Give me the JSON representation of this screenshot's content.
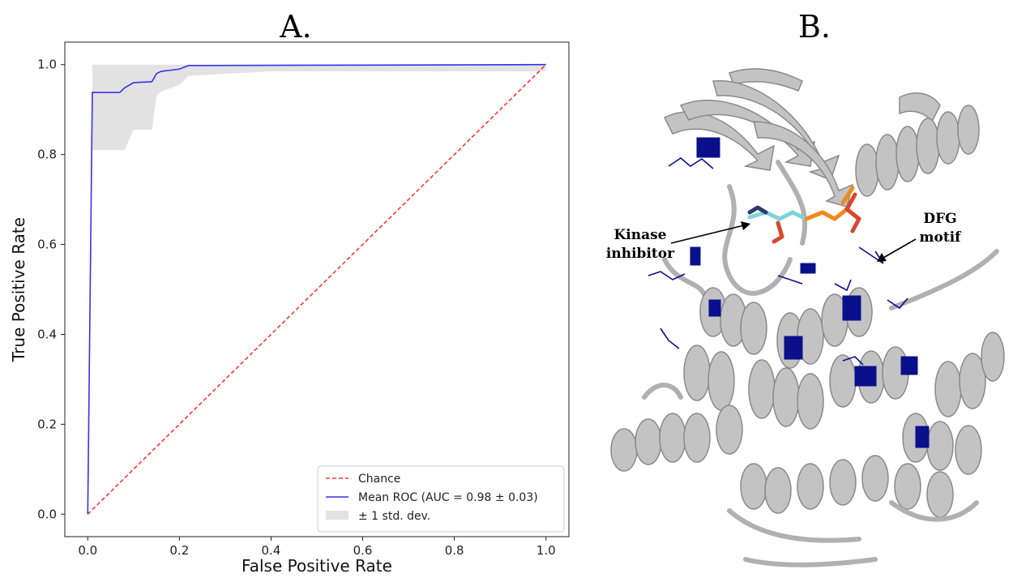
{
  "panels": {
    "a_label": "A.",
    "b_label": "B."
  },
  "chart_data": {
    "type": "line",
    "title": "",
    "xlabel": "False Positive Rate",
    "ylabel": "True Positive Rate",
    "xlim": [
      -0.05,
      1.05
    ],
    "ylim": [
      -0.05,
      1.05
    ],
    "xticks": [
      0.0,
      0.2,
      0.4,
      0.6,
      0.8,
      1.0
    ],
    "yticks": [
      0.0,
      0.2,
      0.4,
      0.6,
      0.8,
      1.0
    ],
    "xtick_labels": [
      "0.0",
      "0.2",
      "0.4",
      "0.6",
      "0.8",
      "1.0"
    ],
    "ytick_labels": [
      "0.0",
      "0.2",
      "0.4",
      "0.6",
      "0.8",
      "1.0"
    ],
    "grid": false,
    "legend_position": "bottom-right",
    "series": [
      {
        "name": "Chance",
        "style": "dashed",
        "color": "#ff3333",
        "x": [
          0.0,
          1.0
        ],
        "y": [
          0.0,
          1.0
        ]
      },
      {
        "name": "Mean ROC (AUC = 0.98 ± 0.03)",
        "style": "solid",
        "color": "#3333ee",
        "x": [
          0.0,
          0.01,
          0.07,
          0.08,
          0.1,
          0.14,
          0.15,
          0.16,
          0.2,
          0.22,
          1.0
        ],
        "y": [
          0.0,
          0.938,
          0.938,
          0.948,
          0.96,
          0.962,
          0.98,
          0.985,
          0.99,
          0.998,
          1.0
        ]
      }
    ],
    "band": {
      "name": "± 1 std. dev.",
      "color": "#e2e2e2",
      "x": [
        0.01,
        0.08,
        0.1,
        0.14,
        0.15,
        0.16,
        0.2,
        0.22,
        0.4,
        1.0
      ],
      "upper": [
        1.0,
        1.0,
        1.0,
        1.0,
        1.0,
        1.0,
        1.0,
        1.0,
        1.0,
        1.0
      ],
      "lower": [
        0.81,
        0.81,
        0.855,
        0.855,
        0.93,
        0.94,
        0.955,
        0.975,
        0.985,
        0.985
      ]
    }
  },
  "structure": {
    "annotations": [
      {
        "lines": [
          "Kinase",
          "inhibitor"
        ]
      },
      {
        "lines": [
          "DFG",
          "motif"
        ]
      }
    ],
    "colors": {
      "ribbon": "#bdbdbd",
      "ribbon_edge": "#8c8c8c",
      "highlight": "#0a0f8c",
      "ligand_cyan": "#7fd3d9",
      "ligand_orange": "#f08a1c",
      "ligand_red": "#d9462e"
    }
  }
}
